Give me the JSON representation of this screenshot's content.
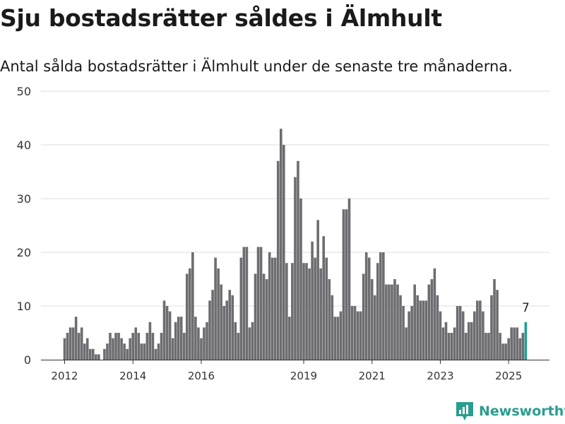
{
  "header": {
    "title": "Sju bostadsrätter såldes i Älmhult",
    "subtitle": "Antal sålda bostadsrätter i Älmhult under de senaste tre månaderna."
  },
  "brand": {
    "name": "Newsworthy",
    "icon": "bar-chart-logo-icon",
    "color": "#2a9d8f"
  },
  "colors": {
    "bar": "#6d6c70",
    "highlight": "#1f9e94",
    "grid": "#dddddd"
  },
  "chart_data": {
    "type": "bar",
    "title": "",
    "xlabel": "",
    "ylabel": "",
    "ylim": [
      0,
      50
    ],
    "y_ticks": [
      0,
      10,
      20,
      30,
      40,
      50
    ],
    "x_ticks": [
      "2012",
      "2014",
      "2016",
      "2019",
      "2021",
      "2023",
      "2025"
    ],
    "x_tick_month_index": [
      0,
      24,
      48,
      84,
      108,
      132,
      156
    ],
    "start_month": "2012-01",
    "grid": true,
    "annotation": {
      "label": "7",
      "month_index": 162
    },
    "values": [
      4,
      5,
      6,
      6,
      8,
      5,
      6,
      3,
      4,
      2,
      2,
      1,
      1,
      0,
      2,
      3,
      5,
      4,
      5,
      5,
      4,
      3,
      2,
      4,
      5,
      6,
      5,
      3,
      3,
      5,
      7,
      5,
      2,
      3,
      5,
      11,
      10,
      9,
      4,
      7,
      8,
      8,
      5,
      16,
      17,
      20,
      8,
      6,
      4,
      6,
      7,
      11,
      13,
      19,
      17,
      14,
      10,
      11,
      13,
      12,
      7,
      5,
      19,
      21,
      21,
      6,
      7,
      16,
      21,
      21,
      16,
      15,
      20,
      19,
      19,
      37,
      43,
      40,
      18,
      8,
      18,
      34,
      37,
      30,
      18,
      18,
      17,
      22,
      19,
      26,
      17,
      23,
      19,
      15,
      12,
      8,
      8,
      9,
      28,
      28,
      30,
      10,
      10,
      9,
      9,
      16,
      20,
      19,
      15,
      12,
      18,
      20,
      20,
      14,
      14,
      14,
      15,
      14,
      12,
      10,
      6,
      9,
      10,
      14,
      12,
      11,
      11,
      11,
      14,
      15,
      17,
      12,
      9,
      6,
      7,
      5,
      5,
      6,
      10,
      10,
      9,
      5,
      7,
      7,
      9,
      11,
      11,
      9,
      5,
      5,
      12,
      15,
      13,
      5,
      3,
      3,
      4,
      6,
      6,
      6,
      4,
      5,
      7
    ]
  }
}
